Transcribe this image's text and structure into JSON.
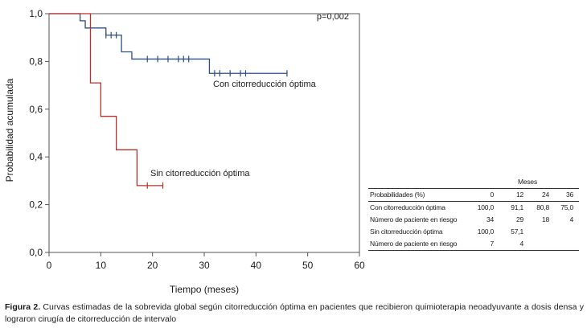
{
  "chart_data": {
    "type": "line",
    "xlabel": "Tiempo (meses)",
    "ylabel": "Probabilidad acumulada",
    "xlim": [
      0,
      60
    ],
    "ylim": [
      0,
      1
    ],
    "x_ticks": [
      "0",
      "10",
      "20",
      "30",
      "40",
      "50",
      "60"
    ],
    "y_ticks": [
      "0,0",
      "0,2",
      "0,4",
      "0,6",
      "0,8",
      "1,0"
    ],
    "x_tick_values": [
      0,
      10,
      20,
      30,
      40,
      50,
      60
    ],
    "y_tick_values": [
      0,
      0.2,
      0.4,
      0.6,
      0.8,
      1.0
    ],
    "p_value": "p=0,002",
    "series": [
      {
        "name": "Con citorreducción óptima",
        "color": "#2b4f7e",
        "steps": [
          [
            0,
            1.0
          ],
          [
            6,
            0.97
          ],
          [
            7,
            0.94
          ],
          [
            11,
            0.91
          ],
          [
            14,
            0.84
          ],
          [
            16,
            0.81
          ],
          [
            31,
            0.75
          ],
          [
            46,
            0.75
          ]
        ],
        "censored_x": [
          11,
          12,
          13,
          19,
          21,
          23,
          25,
          26,
          27,
          32,
          33,
          35,
          37,
          38,
          46
        ]
      },
      {
        "name": "Sin citorreducción óptima",
        "color": "#b5312c",
        "steps": [
          [
            0,
            1.0
          ],
          [
            8,
            0.71
          ],
          [
            10,
            0.57
          ],
          [
            13,
            0.43
          ],
          [
            17,
            0.28
          ],
          [
            22,
            0.28
          ]
        ],
        "censored_x": [
          19,
          22
        ]
      }
    ]
  },
  "risk_table": {
    "header_group": "Meses",
    "label_header": "Probabilidades (%)",
    "columns": [
      "0",
      "12",
      "24",
      "36"
    ],
    "rows": [
      {
        "label": "Con citorreducción óptima",
        "values": [
          "100,0",
          "91,1",
          "80,8",
          "75,0"
        ]
      },
      {
        "label": "Número de paciente en riesgo",
        "values": [
          "34",
          "29",
          "18",
          "4"
        ]
      },
      {
        "label": "Sin citorreducción óptima",
        "values": [
          "100,0",
          "57,1",
          "",
          ""
        ]
      },
      {
        "label": "Número de paciente en riesgo",
        "values": [
          "7",
          "4",
          "",
          ""
        ]
      }
    ]
  },
  "caption": {
    "label": "Figura 2.",
    "text": " Curvas estimadas de la sobrevida global según citorreducción óptima en pacientes que recibieron quimioterapia neoadyuvante a dosis densa y lograron cirugía de citorreducción de intervalo"
  }
}
